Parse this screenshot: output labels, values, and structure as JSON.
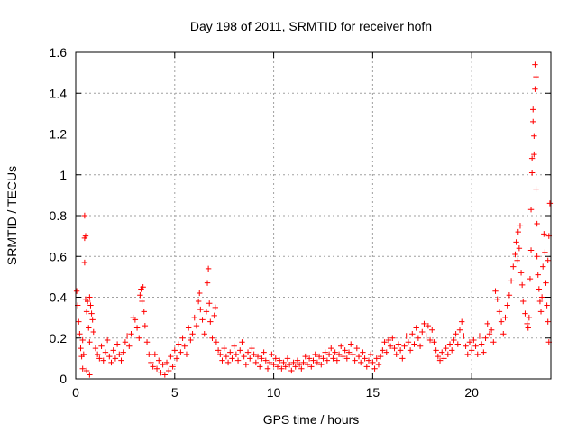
{
  "chart_data": {
    "type": "scatter",
    "title": "Day 198 of 2011, SRMTID for receiver hofn",
    "xlabel": "GPS time / hours",
    "ylabel": "SRMTID / TECUs",
    "xlim": [
      0,
      24
    ],
    "ylim": [
      0,
      1.6
    ],
    "x_ticks": [
      0,
      5,
      10,
      15,
      20
    ],
    "y_ticks": [
      0,
      0.2,
      0.4,
      0.6,
      0.8,
      1,
      1.2,
      1.4,
      1.6
    ],
    "x_tick_labels": [
      "0",
      "5",
      "10",
      "15",
      "20"
    ],
    "y_tick_labels": [
      "0",
      "0.2",
      "0.4",
      "0.6",
      "0.8",
      "1",
      "1.2",
      "1.4",
      "1.6"
    ],
    "grid": true,
    "marker": "+",
    "color": "#ff0000",
    "series": [
      {
        "name": "SRMTID",
        "points": [
          [
            0.05,
            0.43
          ],
          [
            0.1,
            0.36
          ],
          [
            0.15,
            0.28
          ],
          [
            0.2,
            0.22
          ],
          [
            0.25,
            0.15
          ],
          [
            0.3,
            0.11
          ],
          [
            0.35,
            0.19
          ],
          [
            0.4,
            0.12
          ],
          [
            0.45,
            0.57
          ],
          [
            0.45,
            0.69
          ],
          [
            0.5,
            0.7
          ],
          [
            0.45,
            0.8
          ],
          [
            0.5,
            0.39
          ],
          [
            0.55,
            0.33
          ],
          [
            0.6,
            0.38
          ],
          [
            0.7,
            0.4
          ],
          [
            0.75,
            0.36
          ],
          [
            0.8,
            0.32
          ],
          [
            0.65,
            0.25
          ],
          [
            0.7,
            0.18
          ],
          [
            0.85,
            0.29
          ],
          [
            0.9,
            0.23
          ],
          [
            0.55,
            0.04
          ],
          [
            0.7,
            0.02
          ],
          [
            0.35,
            0.05
          ],
          [
            1.0,
            0.15
          ],
          [
            1.1,
            0.12
          ],
          [
            1.2,
            0.1
          ],
          [
            1.3,
            0.16
          ],
          [
            1.4,
            0.09
          ],
          [
            1.5,
            0.13
          ],
          [
            1.6,
            0.19
          ],
          [
            1.7,
            0.11
          ],
          [
            1.8,
            0.08
          ],
          [
            1.9,
            0.14
          ],
          [
            2.0,
            0.1
          ],
          [
            2.1,
            0.17
          ],
          [
            2.2,
            0.12
          ],
          [
            2.3,
            0.09
          ],
          [
            2.4,
            0.13
          ],
          [
            2.5,
            0.18
          ],
          [
            2.6,
            0.21
          ],
          [
            2.7,
            0.16
          ],
          [
            2.8,
            0.22
          ],
          [
            2.9,
            0.3
          ],
          [
            3.0,
            0.29
          ],
          [
            3.1,
            0.25
          ],
          [
            3.2,
            0.2
          ],
          [
            3.25,
            0.41
          ],
          [
            3.3,
            0.44
          ],
          [
            3.35,
            0.38
          ],
          [
            3.4,
            0.45
          ],
          [
            3.45,
            0.33
          ],
          [
            3.5,
            0.26
          ],
          [
            3.6,
            0.18
          ],
          [
            3.7,
            0.12
          ],
          [
            3.8,
            0.08
          ],
          [
            3.9,
            0.06
          ],
          [
            4.0,
            0.12
          ],
          [
            4.1,
            0.05
          ],
          [
            4.2,
            0.09
          ],
          [
            4.3,
            0.03
          ],
          [
            4.4,
            0.07
          ],
          [
            4.5,
            0.02
          ],
          [
            4.6,
            0.08
          ],
          [
            4.7,
            0.04
          ],
          [
            4.8,
            0.11
          ],
          [
            4.9,
            0.06
          ],
          [
            5.0,
            0.14
          ],
          [
            5.1,
            0.1
          ],
          [
            5.2,
            0.17
          ],
          [
            5.3,
            0.13
          ],
          [
            5.4,
            0.2
          ],
          [
            5.5,
            0.16
          ],
          [
            5.6,
            0.12
          ],
          [
            5.7,
            0.25
          ],
          [
            5.8,
            0.19
          ],
          [
            5.9,
            0.22
          ],
          [
            6.0,
            0.3
          ],
          [
            6.1,
            0.26
          ],
          [
            6.2,
            0.38
          ],
          [
            6.25,
            0.42
          ],
          [
            6.3,
            0.34
          ],
          [
            6.4,
            0.29
          ],
          [
            6.5,
            0.22
          ],
          [
            6.6,
            0.33
          ],
          [
            6.65,
            0.47
          ],
          [
            6.7,
            0.54
          ],
          [
            6.75,
            0.37
          ],
          [
            6.8,
            0.28
          ],
          [
            6.9,
            0.2
          ],
          [
            7.0,
            0.31
          ],
          [
            7.05,
            0.35
          ],
          [
            7.1,
            0.18
          ],
          [
            7.2,
            0.14
          ],
          [
            7.3,
            0.12
          ],
          [
            7.4,
            0.09
          ],
          [
            7.5,
            0.15
          ],
          [
            7.6,
            0.11
          ],
          [
            7.7,
            0.08
          ],
          [
            7.8,
            0.13
          ],
          [
            7.9,
            0.1
          ],
          [
            8.0,
            0.16
          ],
          [
            8.1,
            0.12
          ],
          [
            8.2,
            0.09
          ],
          [
            8.3,
            0.14
          ],
          [
            8.4,
            0.18
          ],
          [
            8.5,
            0.11
          ],
          [
            8.6,
            0.07
          ],
          [
            8.7,
            0.13
          ],
          [
            8.8,
            0.1
          ],
          [
            8.9,
            0.15
          ],
          [
            9.0,
            0.12
          ],
          [
            9.1,
            0.08
          ],
          [
            9.2,
            0.11
          ],
          [
            9.3,
            0.06
          ],
          [
            9.4,
            0.1
          ],
          [
            9.5,
            0.13
          ],
          [
            9.6,
            0.09
          ],
          [
            9.7,
            0.05
          ],
          [
            9.8,
            0.08
          ],
          [
            9.9,
            0.12
          ],
          [
            10.0,
            0.07
          ],
          [
            10.1,
            0.1
          ],
          [
            10.2,
            0.06
          ],
          [
            10.3,
            0.09
          ],
          [
            10.4,
            0.05
          ],
          [
            10.5,
            0.08
          ],
          [
            10.6,
            0.06
          ],
          [
            10.7,
            0.1
          ],
          [
            10.8,
            0.07
          ],
          [
            10.9,
            0.04
          ],
          [
            11.0,
            0.08
          ],
          [
            11.1,
            0.06
          ],
          [
            11.2,
            0.09
          ],
          [
            11.3,
            0.07
          ],
          [
            11.4,
            0.05
          ],
          [
            11.5,
            0.08
          ],
          [
            11.6,
            0.11
          ],
          [
            11.7,
            0.07
          ],
          [
            11.8,
            0.1
          ],
          [
            11.9,
            0.06
          ],
          [
            12.0,
            0.09
          ],
          [
            12.1,
            0.12
          ],
          [
            12.2,
            0.08
          ],
          [
            12.3,
            0.11
          ],
          [
            12.4,
            0.07
          ],
          [
            12.5,
            0.1
          ],
          [
            12.6,
            0.13
          ],
          [
            12.7,
            0.09
          ],
          [
            12.8,
            0.12
          ],
          [
            12.9,
            0.15
          ],
          [
            13.0,
            0.1
          ],
          [
            13.1,
            0.13
          ],
          [
            13.2,
            0.09
          ],
          [
            13.3,
            0.12
          ],
          [
            13.4,
            0.16
          ],
          [
            13.5,
            0.11
          ],
          [
            13.6,
            0.14
          ],
          [
            13.7,
            0.1
          ],
          [
            13.8,
            0.13
          ],
          [
            13.9,
            0.17
          ],
          [
            14.0,
            0.12
          ],
          [
            14.1,
            0.09
          ],
          [
            14.2,
            0.15
          ],
          [
            14.3,
            0.11
          ],
          [
            14.4,
            0.08
          ],
          [
            14.5,
            0.13
          ],
          [
            14.6,
            0.1
          ],
          [
            14.7,
            0.06
          ],
          [
            14.8,
            0.09
          ],
          [
            14.9,
            0.12
          ],
          [
            15.0,
            0.08
          ],
          [
            15.1,
            0.05
          ],
          [
            15.2,
            0.1
          ],
          [
            15.3,
            0.07
          ],
          [
            15.4,
            0.11
          ],
          [
            15.5,
            0.14
          ],
          [
            15.6,
            0.18
          ],
          [
            15.7,
            0.13
          ],
          [
            15.8,
            0.19
          ],
          [
            15.9,
            0.16
          ],
          [
            16.0,
            0.2
          ],
          [
            16.1,
            0.15
          ],
          [
            16.2,
            0.12
          ],
          [
            16.3,
            0.17
          ],
          [
            16.4,
            0.14
          ],
          [
            16.5,
            0.1
          ],
          [
            16.6,
            0.16
          ],
          [
            16.7,
            0.21
          ],
          [
            16.8,
            0.18
          ],
          [
            16.9,
            0.14
          ],
          [
            17.0,
            0.22
          ],
          [
            17.1,
            0.17
          ],
          [
            17.2,
            0.25
          ],
          [
            17.3,
            0.2
          ],
          [
            17.4,
            0.16
          ],
          [
            17.5,
            0.23
          ],
          [
            17.6,
            0.27
          ],
          [
            17.7,
            0.21
          ],
          [
            17.8,
            0.26
          ],
          [
            17.9,
            0.19
          ],
          [
            18.0,
            0.24
          ],
          [
            18.1,
            0.18
          ],
          [
            18.2,
            0.14
          ],
          [
            18.3,
            0.11
          ],
          [
            18.4,
            0.09
          ],
          [
            18.5,
            0.13
          ],
          [
            18.6,
            0.1
          ],
          [
            18.7,
            0.15
          ],
          [
            18.8,
            0.12
          ],
          [
            18.9,
            0.17
          ],
          [
            19.0,
            0.14
          ],
          [
            19.1,
            0.19
          ],
          [
            19.2,
            0.22
          ],
          [
            19.3,
            0.17
          ],
          [
            19.4,
            0.24
          ],
          [
            19.5,
            0.28
          ],
          [
            19.6,
            0.21
          ],
          [
            19.7,
            0.16
          ],
          [
            19.8,
            0.12
          ],
          [
            19.9,
            0.18
          ],
          [
            20.0,
            0.14
          ],
          [
            20.1,
            0.19
          ],
          [
            20.2,
            0.16
          ],
          [
            20.3,
            0.12
          ],
          [
            20.4,
            0.21
          ],
          [
            20.5,
            0.17
          ],
          [
            20.6,
            0.13
          ],
          [
            20.7,
            0.2
          ],
          [
            20.8,
            0.27
          ],
          [
            20.9,
            0.22
          ],
          [
            21.0,
            0.24
          ],
          [
            21.1,
            0.18
          ],
          [
            21.2,
            0.43
          ],
          [
            21.3,
            0.39
          ],
          [
            21.4,
            0.33
          ],
          [
            21.5,
            0.28
          ],
          [
            21.6,
            0.22
          ],
          [
            21.7,
            0.3
          ],
          [
            21.8,
            0.36
          ],
          [
            21.9,
            0.41
          ],
          [
            22.0,
            0.48
          ],
          [
            22.1,
            0.55
          ],
          [
            22.2,
            0.61
          ],
          [
            22.25,
            0.67
          ],
          [
            22.3,
            0.58
          ],
          [
            22.35,
            0.72
          ],
          [
            22.4,
            0.64
          ],
          [
            22.45,
            0.75
          ],
          [
            22.5,
            0.52
          ],
          [
            22.55,
            0.46
          ],
          [
            22.6,
            0.38
          ],
          [
            22.7,
            0.32
          ],
          [
            22.8,
            0.27
          ],
          [
            22.85,
            0.25
          ],
          [
            22.9,
            0.3
          ],
          [
            22.95,
            0.49
          ],
          [
            23.0,
            0.63
          ],
          [
            23.0,
            0.83
          ],
          [
            23.05,
            1.01
          ],
          [
            23.05,
            1.08
          ],
          [
            23.1,
            1.26
          ],
          [
            23.1,
            1.32
          ],
          [
            23.15,
            1.1
          ],
          [
            23.15,
            1.19
          ],
          [
            23.2,
            1.42
          ],
          [
            23.2,
            1.54
          ],
          [
            23.25,
            1.48
          ],
          [
            23.25,
            0.93
          ],
          [
            23.3,
            0.76
          ],
          [
            23.3,
            0.6
          ],
          [
            23.35,
            0.51
          ],
          [
            23.4,
            0.44
          ],
          [
            23.45,
            0.38
          ],
          [
            23.5,
            0.33
          ],
          [
            23.55,
            0.4
          ],
          [
            23.6,
            0.55
          ],
          [
            23.65,
            0.71
          ],
          [
            23.7,
            0.62
          ],
          [
            23.75,
            0.47
          ],
          [
            23.8,
            0.36
          ],
          [
            23.85,
            0.28
          ],
          [
            23.9,
            0.18
          ],
          [
            23.95,
            0.86
          ],
          [
            23.9,
            0.7
          ],
          [
            23.85,
            0.58
          ]
        ]
      }
    ]
  }
}
